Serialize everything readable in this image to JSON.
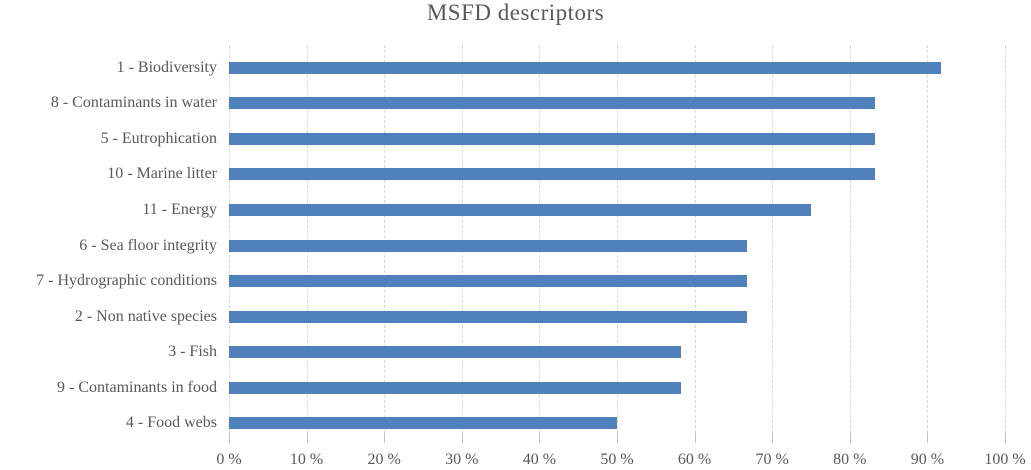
{
  "chart_data": {
    "type": "bar",
    "orientation": "horizontal",
    "title": "MSFD descriptors",
    "categories": [
      "1 - Biodiversity",
      "8 - Contaminants in water",
      "5 - Eutrophication",
      "10 - Marine litter",
      "11 - Energy",
      "6 - Sea floor integrity",
      "7 - Hydrographic conditions",
      "2 - Non native species",
      "3 - Fish",
      "9 - Contaminants in food",
      "4 - Food webs"
    ],
    "values": [
      91.7,
      83.3,
      83.3,
      83.3,
      75.0,
      66.7,
      66.7,
      66.7,
      58.3,
      58.3,
      50.0
    ],
    "xlabel": "",
    "ylabel": "",
    "xlim": [
      0,
      100
    ],
    "x_tick_values": [
      0,
      10,
      20,
      30,
      40,
      50,
      60,
      70,
      80,
      90,
      100
    ],
    "x_tick_labels": [
      "0 %",
      "10 %",
      "20 %",
      "30 %",
      "40 %",
      "50 %",
      "60 %",
      "70 %",
      "80 %",
      "90 %",
      "100 %"
    ],
    "grid": "vertical dashed gridlines on, horizontal off",
    "legend": "none",
    "colors": {
      "bar": "#4f81bd",
      "gridline": "#d9d9d9",
      "tick": "#c2c2c2",
      "text": "#595959",
      "background": "#ffffff"
    }
  }
}
